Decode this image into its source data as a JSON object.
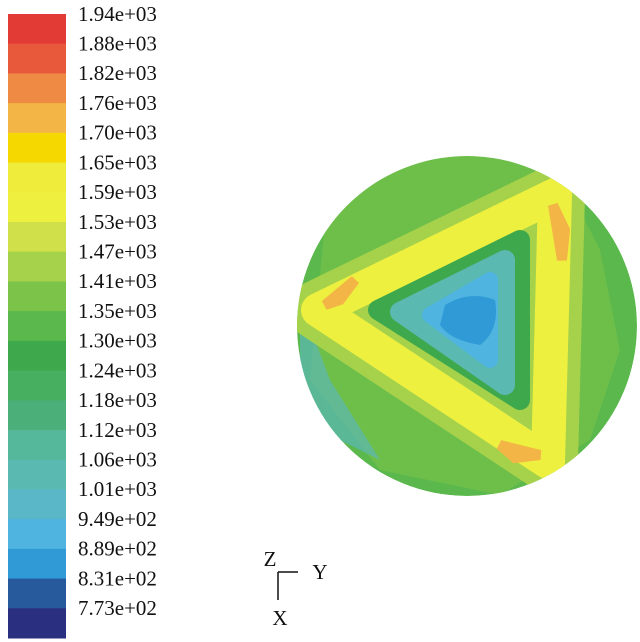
{
  "colorbar": {
    "levels": [
      {
        "label": "1.94e+03",
        "color": "#e23b36"
      },
      {
        "label": "1.88e+03",
        "color": "#e8583a"
      },
      {
        "label": "1.82e+03",
        "color": "#ef8a45"
      },
      {
        "label": "1.76e+03",
        "color": "#f3b545"
      },
      {
        "label": "1.70e+03",
        "color": "#f5d800"
      },
      {
        "label": "1.65e+03",
        "color": "#f0ec3c"
      },
      {
        "label": "1.59e+03",
        "color": "#eef040"
      },
      {
        "label": "1.53e+03",
        "color": "#cfe04a"
      },
      {
        "label": "1.47e+03",
        "color": "#a5d24a"
      },
      {
        "label": "1.41e+03",
        "color": "#7cc34a"
      },
      {
        "label": "1.35e+03",
        "color": "#5ab84c"
      },
      {
        "label": "1.30e+03",
        "color": "#3ea84c"
      },
      {
        "label": "1.24e+03",
        "color": "#46b060"
      },
      {
        "label": "1.18e+03",
        "color": "#4aaf78"
      },
      {
        "label": "1.12e+03",
        "color": "#55b89a"
      },
      {
        "label": "1.06e+03",
        "color": "#5ab9b0"
      },
      {
        "label": "1.01e+03",
        "color": "#5ab7c8"
      },
      {
        "label": "9.49e+02",
        "color": "#4fb4e0"
      },
      {
        "label": "8.89e+02",
        "color": "#2f9ad6"
      },
      {
        "label": "8.31e+02",
        "color": "#275a9c"
      },
      {
        "label": "7.73e+02",
        "color": "#2b2f7f"
      }
    ]
  },
  "axes_triad": {
    "z": "Z",
    "y": "Y",
    "x": "X"
  }
}
